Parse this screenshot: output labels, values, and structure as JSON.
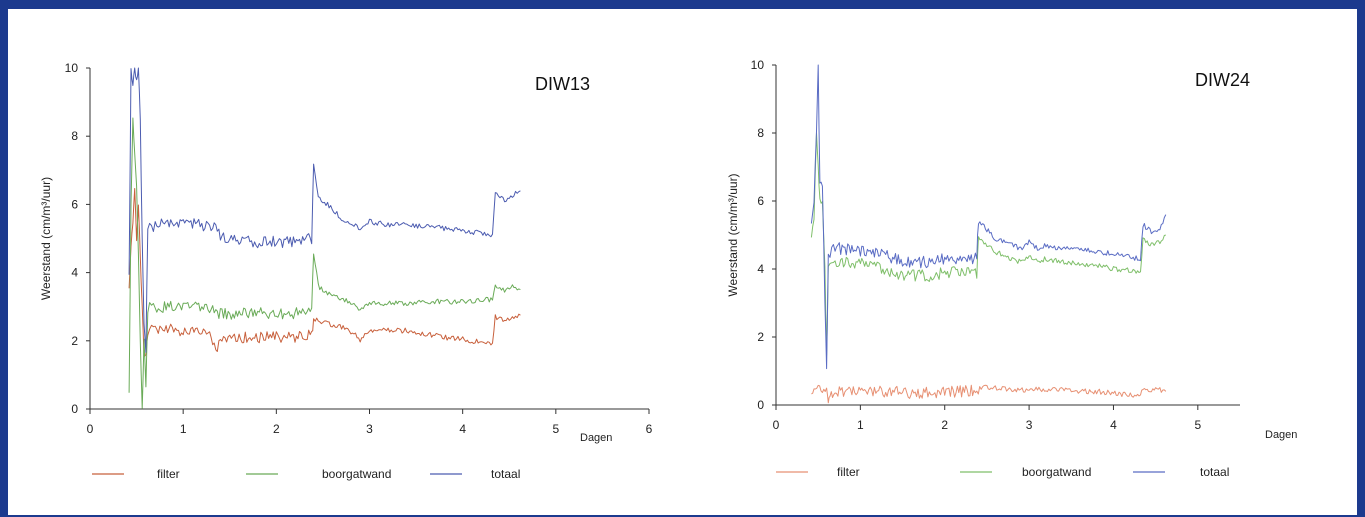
{
  "chart_data": [
    {
      "type": "line",
      "title": "DIW13",
      "ylabel": "Weerstand (cm/m³/uur)",
      "xlabel": "Dagen",
      "xlim": [
        0,
        6
      ],
      "ylim": [
        0,
        10
      ],
      "x_ticks": [
        "0",
        "1",
        "2",
        "3",
        "4",
        "5",
        "6"
      ],
      "y_ticks": [
        "0",
        "2",
        "4",
        "6",
        "8",
        "10"
      ],
      "legend_position": "bottom",
      "series": [
        {
          "name": "filter",
          "color": "#c8603c",
          "x": [
            0.42,
            0.44,
            0.46,
            0.48,
            0.5,
            0.52,
            0.54,
            0.56,
            0.58,
            0.6,
            0.62,
            0.66,
            0.7,
            0.8,
            1.0,
            1.2,
            1.3,
            1.35,
            1.4,
            1.6,
            1.8,
            2.0,
            2.2,
            2.38,
            2.4,
            2.45,
            2.55,
            2.7,
            2.85,
            2.9,
            3.0,
            3.2,
            3.4,
            3.6,
            3.8,
            4.0,
            4.2,
            4.32,
            4.35,
            4.45,
            4.55,
            4.62
          ],
          "y": [
            3.5,
            4.8,
            5.5,
            6.5,
            5.0,
            6.0,
            4.5,
            3.0,
            1.6,
            1.6,
            2.2,
            2.3,
            2.3,
            2.4,
            2.3,
            2.3,
            2.2,
            1.6,
            2.1,
            2.1,
            2.1,
            2.1,
            2.1,
            2.2,
            2.6,
            2.6,
            2.5,
            2.4,
            2.2,
            2.0,
            2.3,
            2.3,
            2.3,
            2.2,
            2.1,
            2.05,
            1.95,
            1.9,
            2.7,
            2.6,
            2.7,
            2.75
          ]
        },
        {
          "name": "boorgatwand",
          "color": "#6aab58",
          "x": [
            0.42,
            0.44,
            0.46,
            0.48,
            0.5,
            0.52,
            0.54,
            0.56,
            0.58,
            0.6,
            0.62,
            0.66,
            0.7,
            0.8,
            1.0,
            1.2,
            1.4,
            1.6,
            1.8,
            2.0,
            2.2,
            2.38,
            2.4,
            2.45,
            2.55,
            2.7,
            2.85,
            2.9,
            3.0,
            3.2,
            3.4,
            3.6,
            3.8,
            4.0,
            4.2,
            4.32,
            4.35,
            4.45,
            4.55,
            4.62
          ],
          "y": [
            0.5,
            6.0,
            8.5,
            7.5,
            6.5,
            4.5,
            2.0,
            0.0,
            2.0,
            0.7,
            2.9,
            3.0,
            3.0,
            3.0,
            3.0,
            3.0,
            2.8,
            2.8,
            2.8,
            2.8,
            2.8,
            2.9,
            4.6,
            3.6,
            3.4,
            3.2,
            3.1,
            2.9,
            3.1,
            3.1,
            3.1,
            3.15,
            3.15,
            3.15,
            3.2,
            3.2,
            3.6,
            3.5,
            3.6,
            3.5
          ]
        },
        {
          "name": "totaal",
          "color": "#4c5cb0",
          "x": [
            0.42,
            0.44,
            0.46,
            0.48,
            0.5,
            0.52,
            0.54,
            0.56,
            0.58,
            0.6,
            0.62,
            0.66,
            0.7,
            0.8,
            1.0,
            1.2,
            1.35,
            1.4,
            1.6,
            1.8,
            2.0,
            2.2,
            2.38,
            2.4,
            2.45,
            2.55,
            2.7,
            2.85,
            2.9,
            3.0,
            3.2,
            3.4,
            3.6,
            3.8,
            4.0,
            4.2,
            4.32,
            4.35,
            4.45,
            4.55,
            4.62
          ],
          "y": [
            4.0,
            10.0,
            9.5,
            10.0,
            9.6,
            10.0,
            8.5,
            5.0,
            2.5,
            1.7,
            5.3,
            5.3,
            5.4,
            5.5,
            5.5,
            5.4,
            5.3,
            5.1,
            4.9,
            4.9,
            4.9,
            4.9,
            5.0,
            7.2,
            6.2,
            6.0,
            5.6,
            5.4,
            5.2,
            5.5,
            5.4,
            5.4,
            5.35,
            5.3,
            5.25,
            5.15,
            5.1,
            6.3,
            6.1,
            6.3,
            6.4
          ]
        }
      ]
    },
    {
      "type": "line",
      "title": "DIW24",
      "ylabel": "Weerstand (cm/m³/uur)",
      "xlabel": "Dagen",
      "xlim": [
        0,
        5.5
      ],
      "ylim": [
        0,
        10
      ],
      "x_ticks": [
        "0",
        "1",
        "2",
        "3",
        "4",
        "5"
      ],
      "y_ticks": [
        "0",
        "2",
        "4",
        "6",
        "8",
        "10"
      ],
      "legend_position": "bottom",
      "series": [
        {
          "name": "filter",
          "color": "#e79073",
          "x": [
            0.42,
            0.45,
            0.5,
            0.55,
            0.6,
            0.62,
            0.64,
            0.7,
            0.8,
            1.0,
            1.2,
            1.4,
            1.6,
            1.8,
            2.0,
            2.2,
            2.38,
            2.45,
            2.6,
            2.8,
            3.0,
            3.2,
            3.4,
            3.6,
            3.8,
            4.0,
            4.2,
            4.32,
            4.35,
            4.45,
            4.55,
            4.62
          ],
          "y": [
            0.3,
            0.5,
            0.6,
            0.4,
            0.5,
            0.1,
            0.3,
            0.4,
            0.4,
            0.4,
            0.4,
            0.4,
            0.35,
            0.35,
            0.4,
            0.4,
            0.45,
            0.55,
            0.5,
            0.45,
            0.45,
            0.45,
            0.45,
            0.4,
            0.4,
            0.35,
            0.3,
            0.3,
            0.45,
            0.45,
            0.45,
            0.4
          ]
        },
        {
          "name": "boorgatwand",
          "color": "#7fbf6a",
          "x": [
            0.42,
            0.45,
            0.48,
            0.5,
            0.52,
            0.55,
            0.58,
            0.6,
            0.62,
            0.66,
            0.7,
            0.8,
            1.0,
            1.2,
            1.4,
            1.6,
            1.8,
            2.0,
            2.2,
            2.38,
            2.4,
            2.45,
            2.6,
            2.7,
            2.9,
            3.0,
            3.1,
            3.2,
            3.4,
            3.6,
            3.8,
            4.0,
            4.2,
            4.32,
            4.35,
            4.45,
            4.55,
            4.62
          ],
          "y": [
            5.0,
            5.5,
            8.0,
            7.0,
            6.0,
            6.0,
            4.0,
            1.5,
            4.0,
            4.2,
            4.2,
            4.2,
            4.2,
            4.1,
            3.9,
            3.8,
            3.8,
            3.9,
            3.9,
            3.9,
            5.0,
            4.8,
            4.5,
            4.4,
            4.2,
            4.4,
            4.2,
            4.3,
            4.2,
            4.15,
            4.1,
            4.0,
            3.95,
            3.9,
            4.9,
            4.7,
            4.8,
            5.0
          ]
        },
        {
          "name": "totaal",
          "color": "#5a6cc4",
          "x": [
            0.42,
            0.45,
            0.48,
            0.5,
            0.52,
            0.55,
            0.58,
            0.6,
            0.62,
            0.66,
            0.7,
            0.8,
            1.0,
            1.2,
            1.4,
            1.6,
            1.8,
            2.0,
            2.2,
            2.38,
            2.4,
            2.45,
            2.6,
            2.7,
            2.9,
            3.0,
            3.1,
            3.2,
            3.4,
            3.6,
            3.8,
            4.0,
            4.2,
            4.32,
            4.35,
            4.45,
            4.55,
            4.62
          ],
          "y": [
            5.4,
            6.0,
            8.0,
            10.0,
            6.5,
            6.5,
            3.0,
            1.0,
            4.5,
            4.5,
            4.6,
            4.6,
            4.5,
            4.5,
            4.3,
            4.2,
            4.2,
            4.3,
            4.3,
            4.3,
            5.4,
            5.3,
            4.9,
            4.8,
            4.6,
            4.8,
            4.6,
            4.7,
            4.6,
            4.6,
            4.5,
            4.45,
            4.35,
            4.3,
            5.3,
            5.1,
            5.2,
            5.6
          ]
        }
      ]
    }
  ]
}
